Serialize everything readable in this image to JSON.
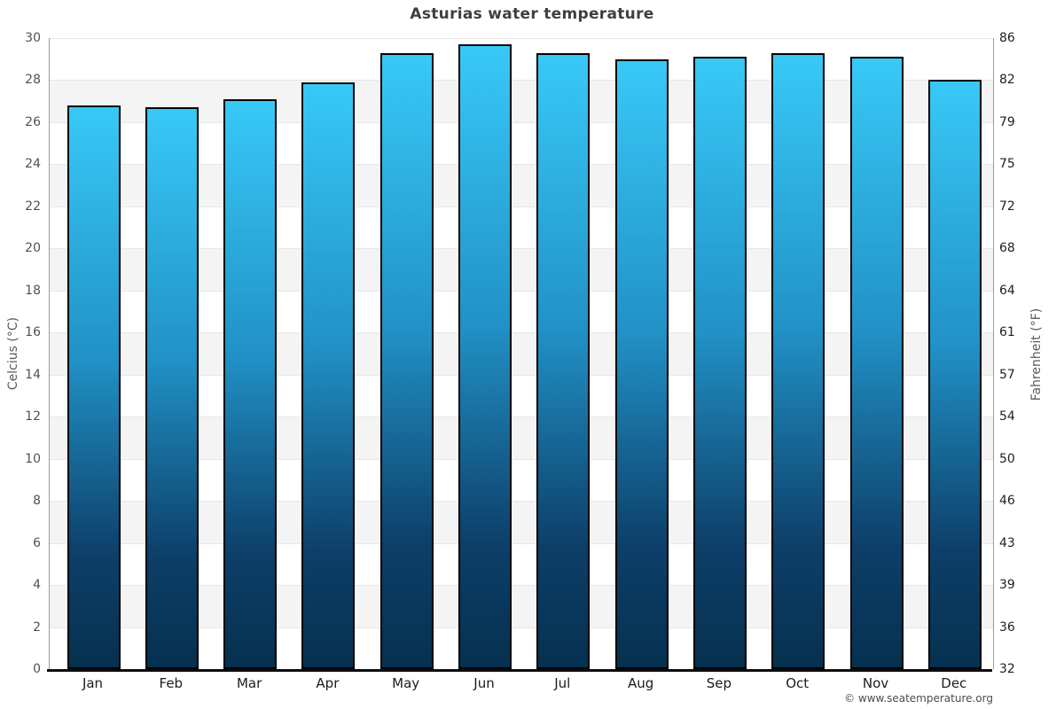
{
  "footer": "© www.seatemperature.org",
  "chart_data": {
    "type": "bar",
    "title": "Asturias water temperature",
    "categories": [
      "Jan",
      "Feb",
      "Mar",
      "Apr",
      "May",
      "Jun",
      "Jul",
      "Aug",
      "Sep",
      "Oct",
      "Nov",
      "Dec"
    ],
    "values": [
      26.8,
      26.7,
      27.1,
      27.9,
      29.3,
      29.7,
      29.3,
      29.0,
      29.1,
      29.3,
      29.1,
      28.0
    ],
    "unit": "°C",
    "ylabel_left": "Celcius (°C)",
    "ylabel_right": "Fahrenheit (°F)",
    "ylim": [
      0,
      30
    ],
    "celsius_ticks": [
      0,
      2,
      4,
      6,
      8,
      10,
      12,
      14,
      16,
      18,
      20,
      22,
      24,
      26,
      28,
      30
    ],
    "fahrenheit_ticks": [
      32,
      36,
      39,
      43,
      46,
      50,
      54,
      57,
      61,
      64,
      68,
      72,
      75,
      79,
      82,
      86
    ],
    "grid": "horizontal-bands",
    "legend": "none",
    "colors": {
      "bar_gradient_top": "#38c9f7",
      "bar_gradient_mid": "#2191c6",
      "bar_gradient_deep": "#0d3f69",
      "bar_gradient_bottom": "#06304f",
      "bar_border": "#000000",
      "band_gray": "#f4f4f4",
      "band_white": "#ffffff",
      "gridline": "#e7e7e7",
      "axis_line": "#9b9b9b",
      "baseline": "#0d0d0d",
      "title_text": "#3f3f3f"
    }
  }
}
